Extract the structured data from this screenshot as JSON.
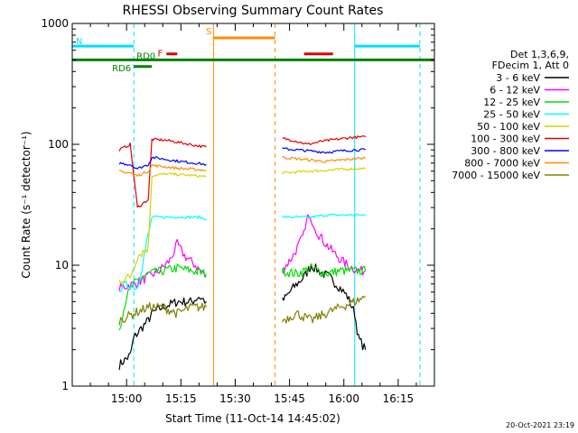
{
  "chart_data": {
    "type": "line",
    "title": "RHESSI Observing Summary Count Rates",
    "xlabel": "Start Time (11-Oct-14 14:45:02)",
    "ylabel": "Count Rate (s⁻¹ detector⁻¹)",
    "y_scale": "log",
    "ylim": [
      1,
      1000
    ],
    "xlim": [
      "14:45",
      "16:25"
    ],
    "x_ticks": [
      "15:00",
      "15:15",
      "15:30",
      "15:45",
      "16:00",
      "16:15"
    ],
    "y_ticks": [
      "1",
      "10",
      "100",
      "1000"
    ],
    "timestamp": "20-Oct-2021 23:19",
    "legend": {
      "position": "right",
      "header": [
        "Det 1,3,6,9,",
        "FDecim 1, Att 0"
      ],
      "entries": [
        {
          "label": "3 - 6 keV",
          "color": "#000000"
        },
        {
          "label": "6 - 12 keV",
          "color": "#ff00ff"
        },
        {
          "label": "12 - 25 keV",
          "color": "#00e000"
        },
        {
          "label": "25 - 50 keV",
          "color": "#00ffff"
        },
        {
          "label": "50 - 100 keV",
          "color": "#d4d400"
        },
        {
          "label": "100 - 300 keV",
          "color": "#e00000"
        },
        {
          "label": "300 - 800 keV",
          "color": "#0000ff"
        },
        {
          "label": "800 - 7000 keV",
          "color": "#ff8c00"
        },
        {
          "label": "7000 - 15000 keV",
          "color": "#808000"
        }
      ]
    },
    "flags": [
      {
        "label": "N",
        "color": "#00e0ff",
        "segments": [
          [
            "14:45",
            "15:02"
          ],
          [
            "16:03",
            "16:21"
          ]
        ],
        "y": 650
      },
      {
        "label": "S",
        "color": "#ff8c00",
        "segments": [
          [
            "15:24",
            "15:41"
          ]
        ],
        "y": 760
      },
      {
        "label": "F",
        "color": "#e00000",
        "segments": [
          [
            "15:11",
            "15:14"
          ],
          [
            "15:49",
            "15:57"
          ]
        ],
        "y": 560
      },
      {
        "label": "RD0",
        "color": "#008000",
        "segments": [
          [
            "14:45",
            "16:25"
          ]
        ],
        "y": 500
      },
      {
        "label": "RD6",
        "color": "#008000",
        "segments": [
          [
            "15:02",
            "15:07"
          ]
        ],
        "y": 440
      }
    ],
    "markers": [
      {
        "time": "14:45",
        "color": "#00e0ff",
        "style": "solid"
      },
      {
        "time": "15:02",
        "color": "#00e0ff",
        "style": "dashed"
      },
      {
        "time": "15:24",
        "color": "#ff8c00",
        "style": "solid"
      },
      {
        "time": "15:41",
        "color": "#ff8c00",
        "style": "dashed"
      },
      {
        "time": "16:03",
        "color": "#00e0ff",
        "style": "solid"
      },
      {
        "time": "16:21",
        "color": "#00e0ff",
        "style": "dashed"
      }
    ],
    "series": [
      {
        "name": "3 - 6 keV",
        "color": "#000000",
        "segments": [
          [
            [
              "14:58",
              1.5
            ],
            [
              "15:01",
              1.8
            ],
            [
              "15:02",
              2.5
            ],
            [
              "15:04",
              3.0
            ],
            [
              "15:06",
              3.5
            ],
            [
              "15:07",
              4.0
            ],
            [
              "15:10",
              4.5
            ],
            [
              "15:14",
              5.0
            ],
            [
              "15:18",
              5.0
            ],
            [
              "15:20",
              5.5
            ],
            [
              "15:22",
              5.0
            ]
          ],
          [
            [
              "15:43",
              5.0
            ],
            [
              "15:46",
              6.5
            ],
            [
              "15:49",
              8.0
            ],
            [
              "15:51",
              10.0
            ],
            [
              "15:53",
              9.0
            ],
            [
              "15:56",
              8.0
            ],
            [
              "15:59",
              6.5
            ],
            [
              "16:01",
              5.5
            ],
            [
              "16:03",
              4.0
            ],
            [
              "16:04",
              2.5
            ],
            [
              "16:06",
              2.0
            ]
          ]
        ]
      },
      {
        "name": "6 - 12 keV",
        "color": "#ff00ff",
        "segments": [
          [
            [
              "14:58",
              6.5
            ],
            [
              "15:02",
              7.0
            ],
            [
              "15:06",
              8.0
            ],
            [
              "15:09",
              9.0
            ],
            [
              "15:12",
              11.0
            ],
            [
              "15:14",
              15.0
            ],
            [
              "15:16",
              12.0
            ],
            [
              "15:19",
              10.0
            ],
            [
              "15:22",
              8.0
            ]
          ],
          [
            [
              "15:43",
              9.0
            ],
            [
              "15:46",
              12.0
            ],
            [
              "15:49",
              18.0
            ],
            [
              "15:50",
              26.0
            ],
            [
              "15:52",
              20.0
            ],
            [
              "15:55",
              15.0
            ],
            [
              "15:58",
              12.0
            ],
            [
              "16:01",
              10.0
            ],
            [
              "16:04",
              9.0
            ],
            [
              "16:06",
              9.0
            ]
          ]
        ]
      },
      {
        "name": "12 - 25 keV",
        "color": "#00e000",
        "segments": [
          [
            [
              "14:58",
              3.0
            ],
            [
              "15:00",
              5.5
            ],
            [
              "15:02",
              7.0
            ],
            [
              "15:06",
              8.5
            ],
            [
              "15:10",
              9.0
            ],
            [
              "15:14",
              9.5
            ],
            [
              "15:18",
              9.0
            ],
            [
              "15:22",
              8.5
            ]
          ],
          [
            [
              "15:43",
              9.0
            ],
            [
              "15:47",
              8.5
            ],
            [
              "15:51",
              9.5
            ],
            [
              "15:55",
              8.5
            ],
            [
              "15:59",
              9.0
            ],
            [
              "16:03",
              9.0
            ],
            [
              "16:06",
              9.0
            ]
          ]
        ]
      },
      {
        "name": "25 - 50 keV",
        "color": "#00ffff",
        "segments": [
          [
            [
              "14:58",
              6.5
            ],
            [
              "15:01",
              7.0
            ],
            [
              "15:03",
              6.5
            ],
            [
              "15:07",
              25.0
            ],
            [
              "15:12",
              25.0
            ],
            [
              "15:16",
              25.0
            ],
            [
              "15:20",
              25.0
            ],
            [
              "15:22",
              24.0
            ]
          ],
          [
            [
              "15:43",
              25.0
            ],
            [
              "15:47",
              25.0
            ],
            [
              "15:51",
              25.0
            ],
            [
              "15:55",
              26.0
            ],
            [
              "15:59",
              26.0
            ],
            [
              "16:03",
              26.0
            ],
            [
              "16:06",
              26.0
            ]
          ]
        ]
      },
      {
        "name": "50 - 100 keV",
        "color": "#d4d400",
        "segments": [
          [
            [
              "14:58",
              7.5
            ],
            [
              "15:01",
              8.0
            ],
            [
              "15:03",
              12.0
            ],
            [
              "15:06",
              14.0
            ],
            [
              "15:07",
              55.0
            ],
            [
              "15:11",
              57.0
            ],
            [
              "15:15",
              56.0
            ],
            [
              "15:19",
              55.0
            ],
            [
              "15:22",
              54.0
            ]
          ],
          [
            [
              "15:43",
              58.0
            ],
            [
              "15:47",
              59.0
            ],
            [
              "15:51",
              60.0
            ],
            [
              "15:55",
              61.0
            ],
            [
              "15:59",
              62.0
            ],
            [
              "16:03",
              63.0
            ],
            [
              "16:06",
              63.0
            ]
          ]
        ]
      },
      {
        "name": "100 - 300 keV",
        "color": "#e00000",
        "segments": [
          [
            [
              "14:58",
              90.0
            ],
            [
              "15:01",
              100.0
            ],
            [
              "15:03",
              30.0
            ],
            [
              "15:06",
              35.0
            ],
            [
              "15:07",
              110.0
            ],
            [
              "15:11",
              108.0
            ],
            [
              "15:15",
              103.0
            ],
            [
              "15:19",
              98.0
            ],
            [
              "15:22",
              95.0
            ]
          ],
          [
            [
              "15:43",
              112.0
            ],
            [
              "15:46",
              108.0
            ],
            [
              "15:50",
              100.0
            ],
            [
              "15:54",
              106.0
            ],
            [
              "15:58",
              110.0
            ],
            [
              "16:02",
              114.0
            ],
            [
              "16:06",
              115.0
            ]
          ]
        ]
      },
      {
        "name": "300 - 800 keV",
        "color": "#0000ff",
        "segments": [
          [
            [
              "14:58",
              70.0
            ],
            [
              "15:01",
              68.0
            ],
            [
              "15:03",
              63.0
            ],
            [
              "15:06",
              68.0
            ],
            [
              "15:07",
              78.0
            ],
            [
              "15:11",
              75.0
            ],
            [
              "15:15",
              72.0
            ],
            [
              "15:19",
              70.0
            ],
            [
              "15:22",
              68.0
            ]
          ],
          [
            [
              "15:43",
              92.0
            ],
            [
              "15:47",
              90.0
            ],
            [
              "15:51",
              88.0
            ],
            [
              "15:55",
              86.0
            ],
            [
              "15:59",
              88.0
            ],
            [
              "16:03",
              90.0
            ],
            [
              "16:06",
              90.0
            ]
          ]
        ]
      },
      {
        "name": "800 - 7000 keV",
        "color": "#ff8c00",
        "segments": [
          [
            [
              "14:58",
              60.0
            ],
            [
              "15:01",
              58.0
            ],
            [
              "15:03",
              55.0
            ],
            [
              "15:06",
              60.0
            ],
            [
              "15:07",
              67.0
            ],
            [
              "15:11",
              65.0
            ],
            [
              "15:15",
              63.0
            ],
            [
              "15:19",
              62.0
            ],
            [
              "15:22",
              61.0
            ]
          ],
          [
            [
              "15:43",
              78.0
            ],
            [
              "15:47",
              76.0
            ],
            [
              "15:51",
              74.0
            ],
            [
              "15:55",
              72.0
            ],
            [
              "15:59",
              74.0
            ],
            [
              "16:03",
              76.0
            ],
            [
              "16:06",
              77.0
            ]
          ]
        ]
      },
      {
        "name": "7000 - 15000 keV",
        "color": "#808000",
        "segments": [
          [
            [
              "14:58",
              3.5
            ],
            [
              "15:02",
              4.0
            ],
            [
              "15:06",
              4.5
            ],
            [
              "15:10",
              4.5
            ],
            [
              "15:14",
              4.0
            ],
            [
              "15:18",
              4.5
            ],
            [
              "15:22",
              4.5
            ]
          ],
          [
            [
              "15:43",
              3.5
            ],
            [
              "15:47",
              4.0
            ],
            [
              "15:51",
              3.5
            ],
            [
              "15:55",
              4.0
            ],
            [
              "15:59",
              4.5
            ],
            [
              "16:03",
              5.0
            ],
            [
              "16:06",
              5.5
            ]
          ]
        ]
      }
    ]
  }
}
